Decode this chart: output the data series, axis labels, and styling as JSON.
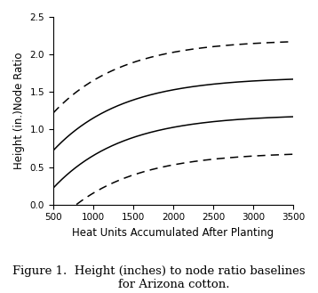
{
  "xlabel": "Heat Units Accumulated After Planting",
  "ylabel": "Height (in.)Node Ratio",
  "xlim": [
    500,
    3500
  ],
  "ylim": [
    0.0,
    2.5
  ],
  "xticks": [
    500,
    1000,
    1500,
    2000,
    2500,
    3000,
    3500
  ],
  "yticks": [
    0.0,
    0.5,
    1.0,
    1.5,
    2.0,
    2.5
  ],
  "caption_line1": "Figure 1.  Height (inches) to node ratio baselines",
  "caption_line2": "for Arizona cotton.",
  "curve_params": [
    {
      "A": 0.1462,
      "b": 0.38,
      "style": "--"
    },
    {
      "A": 0.0862,
      "b": 0.38,
      "style": "-"
    },
    {
      "A": 0.0262,
      "b": 0.38,
      "style": "-"
    },
    {
      "A": -0.0338,
      "b": 0.38,
      "style": "--"
    }
  ],
  "line_color": "#000000",
  "line_width": 1.1,
  "label_fontsize": 8.5,
  "tick_fontsize": 7.5,
  "caption_fontsize": 9.5
}
